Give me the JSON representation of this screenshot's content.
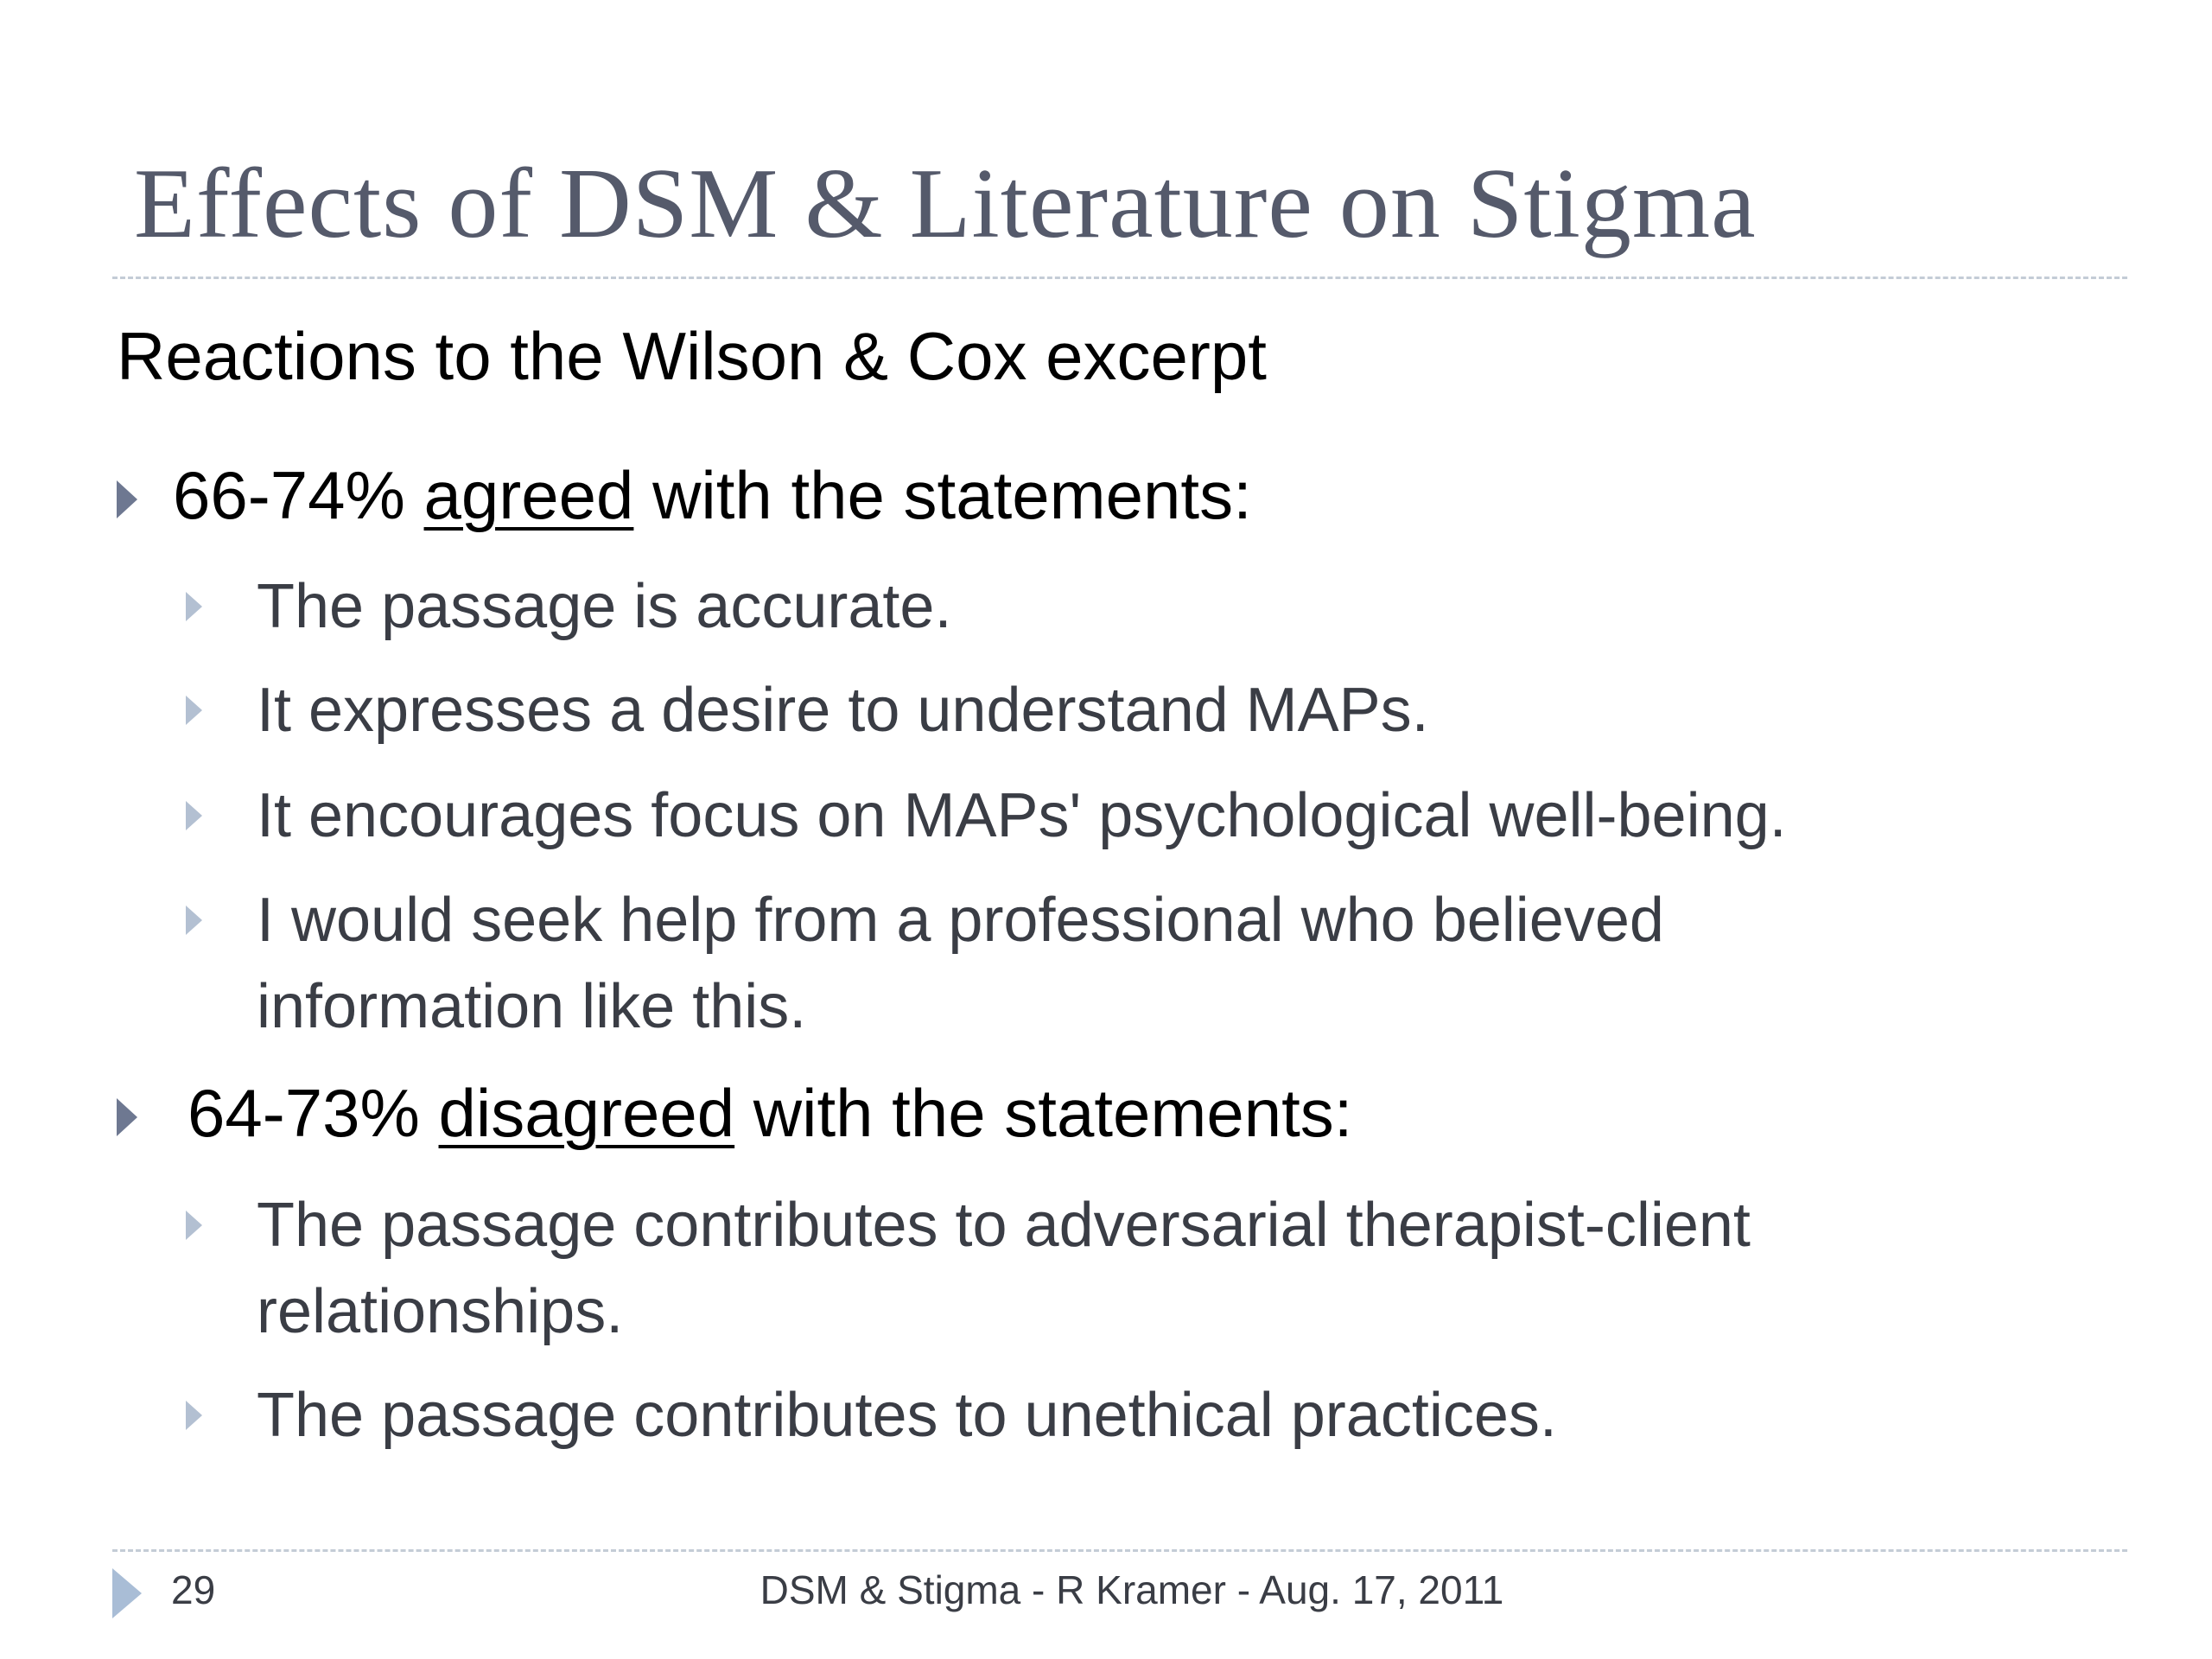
{
  "slide": {
    "title": "Effects of DSM & Literature on Stigma",
    "subtitle": "Reactions to the Wilson & Cox excerpt",
    "groups": [
      {
        "range": "66-74%",
        "verb": "agreed",
        "suffix": "with the statements:",
        "items": [
          "The passage is accurate.",
          "It expresses a desire to understand MAPs.",
          "It encourages focus on MAPs' psychological well-being.",
          "I would seek help from a professional who believed information like this."
        ]
      },
      {
        "range": "64-73%",
        "verb": "disagreed",
        "suffix": "with the statements:",
        "items": [
          "The passage contributes to adversarial therapist-client relationships.",
          "The passage contributes to unethical practices."
        ]
      }
    ]
  },
  "footer": {
    "page_number": "29",
    "text": "DSM & Stigma - R Kramer - Aug. 17, 2011"
  },
  "colors": {
    "title": "#555a6b",
    "body_primary": "#000000",
    "body_secondary": "#3a3d45",
    "bullet_l1": "#6e7891",
    "bullet_l2": "#b3c0d2",
    "rule": "#c4ccd6"
  }
}
